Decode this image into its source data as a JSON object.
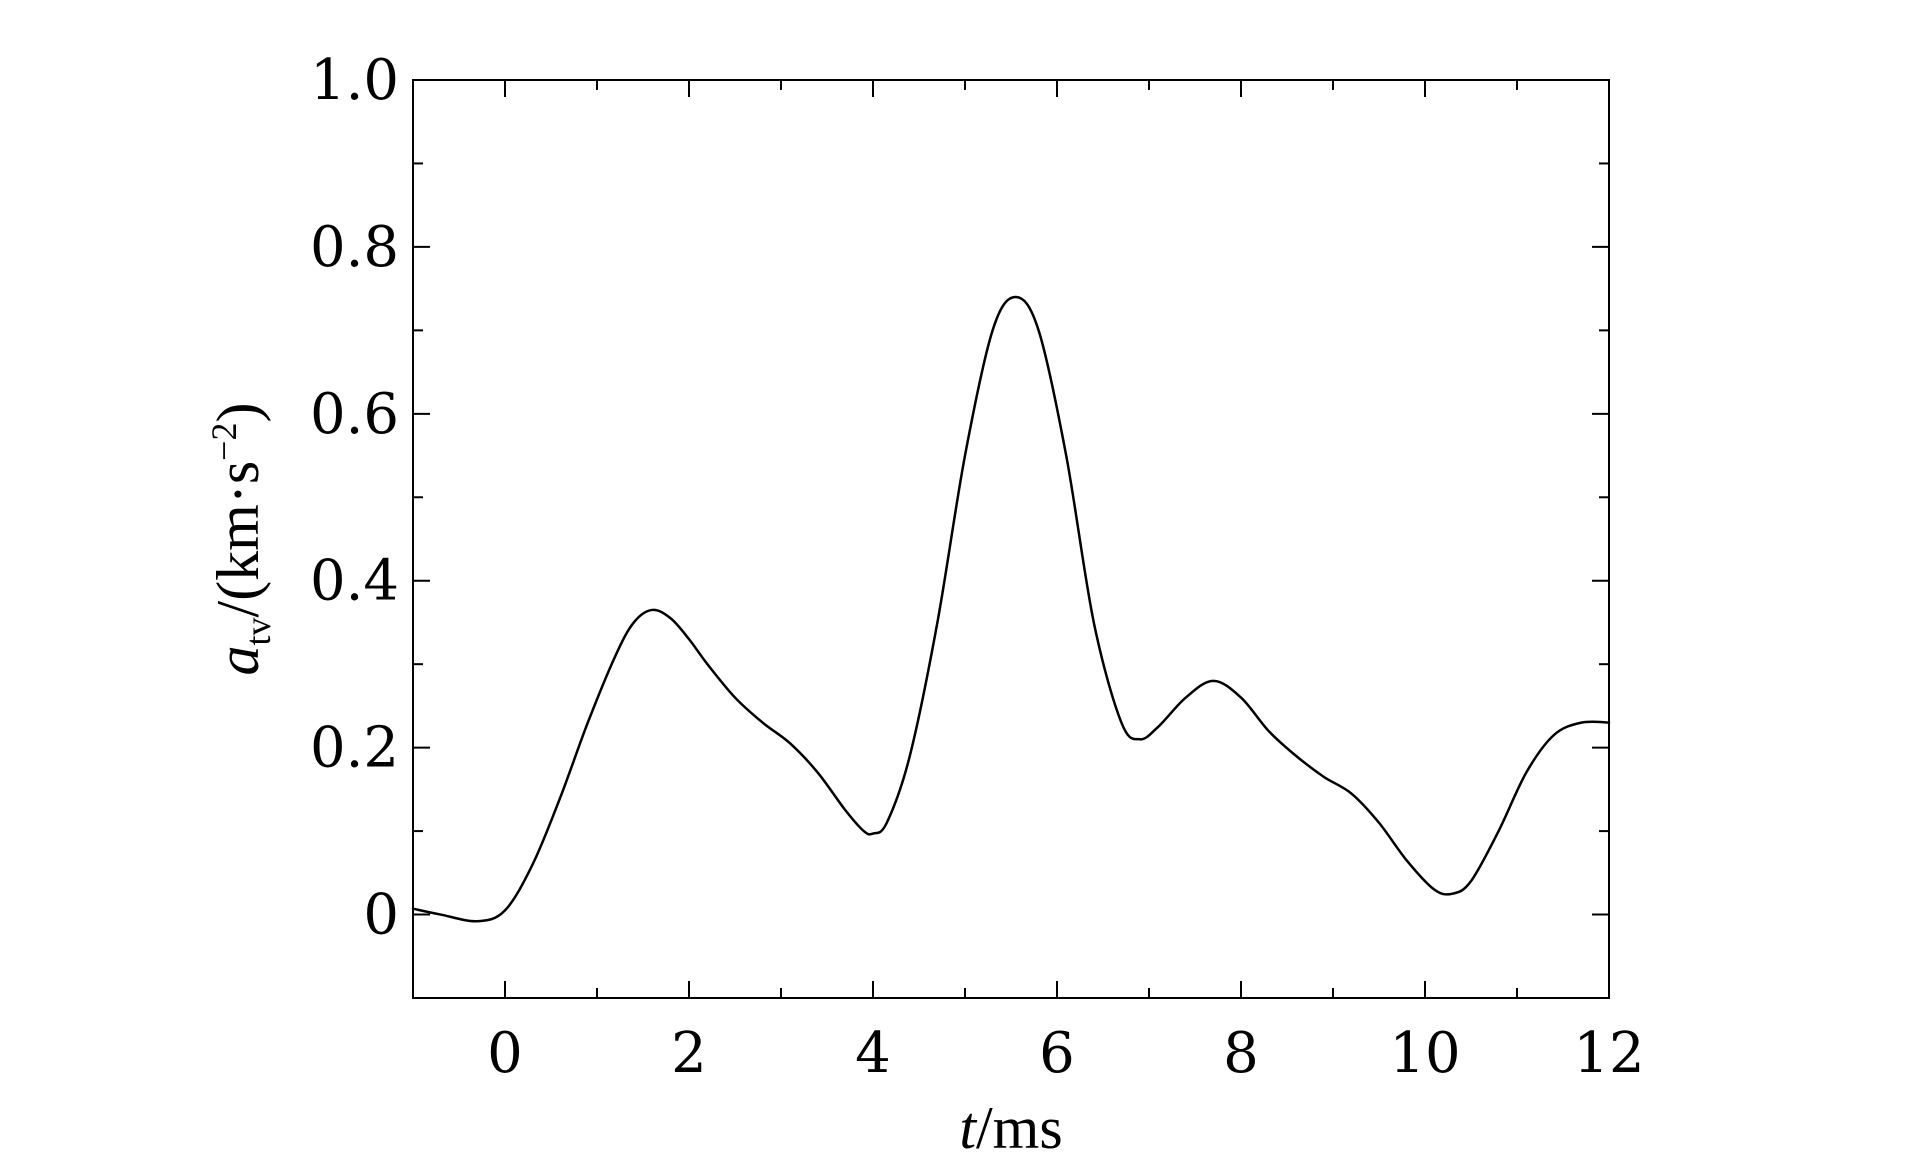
{
  "chart_data": {
    "type": "line",
    "title": "",
    "xlabel": {
      "var": "t",
      "unit": "/ms"
    },
    "ylabel": {
      "var": "a",
      "sub": "tv",
      "unit_prefix": "/(km·s",
      "unit_exp": "−2",
      "unit_suffix": ")"
    },
    "xlim": [
      -1,
      12
    ],
    "ylim": [
      -0.1,
      1.0
    ],
    "xticks": [
      0,
      2,
      4,
      6,
      8,
      10,
      12
    ],
    "xtick_labels": [
      "0",
      "2",
      "4",
      "6",
      "8",
      "10",
      "12"
    ],
    "yticks": [
      0,
      0.2,
      0.4,
      0.6,
      0.8,
      1.0
    ],
    "ytick_labels": [
      "0",
      "0.2",
      "0.4",
      "0.6",
      "0.8",
      "1.0"
    ],
    "grid": false,
    "line_color": "#000000",
    "series": [
      {
        "x": [
          -1.0,
          -0.7,
          -0.3,
          0.0,
          0.3,
          0.6,
          0.9,
          1.2,
          1.4,
          1.6,
          1.8,
          2.0,
          2.2,
          2.5,
          2.8,
          3.1,
          3.4,
          3.7,
          3.9,
          4.0,
          4.15,
          4.4,
          4.7,
          5.0,
          5.3,
          5.55,
          5.8,
          6.1,
          6.4,
          6.7,
          6.9,
          7.1,
          7.4,
          7.7,
          8.0,
          8.3,
          8.6,
          8.9,
          9.2,
          9.5,
          9.8,
          10.1,
          10.3,
          10.5,
          10.8,
          11.1,
          11.4,
          11.7,
          12.0
        ],
        "y": [
          0.007,
          0.0,
          -0.008,
          0.005,
          0.06,
          0.14,
          0.23,
          0.31,
          0.35,
          0.365,
          0.355,
          0.33,
          0.3,
          0.26,
          0.23,
          0.205,
          0.17,
          0.125,
          0.1,
          0.097,
          0.11,
          0.19,
          0.35,
          0.55,
          0.7,
          0.74,
          0.7,
          0.55,
          0.35,
          0.23,
          0.21,
          0.225,
          0.26,
          0.28,
          0.26,
          0.22,
          0.19,
          0.165,
          0.145,
          0.11,
          0.065,
          0.03,
          0.025,
          0.04,
          0.1,
          0.17,
          0.215,
          0.23,
          0.23
        ]
      }
    ]
  }
}
